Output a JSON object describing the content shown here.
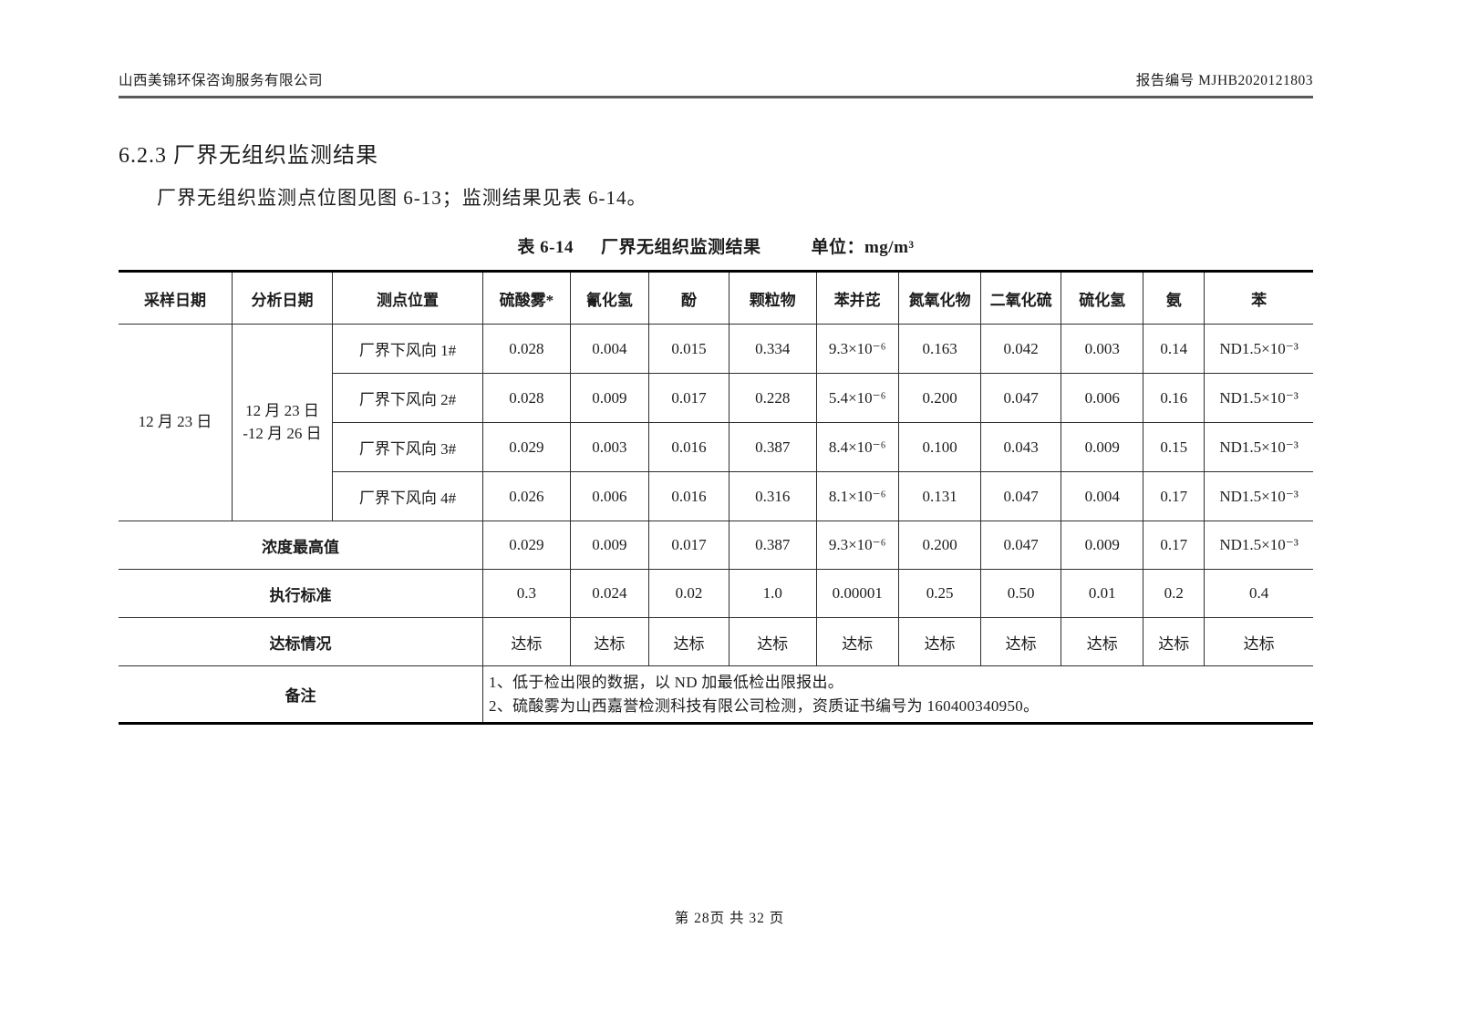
{
  "page_header": {
    "company": "山西美锦环保咨询服务有限公司",
    "report_no": "报告编号 MJHB2020121803"
  },
  "section": {
    "title": "6.2.3 厂界无组织监测结果",
    "paragraph": "厂界无组织监测点位图见图 6-13；监测结果见表 6-14。"
  },
  "caption": {
    "label": "表 6-14",
    "title": "厂界无组织监测结果",
    "unit_label": "单位：",
    "unit_value": "mg/m³"
  },
  "table": {
    "headers": [
      "采样日期",
      "分析日期",
      "测点位置",
      "硫酸雾*",
      "氰化氢",
      "酚",
      "颗粒物",
      "苯并芘",
      "氮氧化物",
      "二氧化硫",
      "硫化氢",
      "氨",
      "苯"
    ],
    "sampling_date": "12 月 23 日",
    "analysis_date": {
      "lines": [
        "12 月 23 日",
        "-12 月 26 日"
      ]
    },
    "rows": [
      {
        "location": "厂界下风向 1#",
        "values": [
          "0.028",
          "0.004",
          "0.015",
          "0.334",
          "9.3×10⁻⁶",
          "0.163",
          "0.042",
          "0.003",
          "0.14",
          "ND1.5×10⁻³"
        ]
      },
      {
        "location": "厂界下风向 2#",
        "values": [
          "0.028",
          "0.009",
          "0.017",
          "0.228",
          "5.4×10⁻⁶",
          "0.200",
          "0.047",
          "0.006",
          "0.16",
          "ND1.5×10⁻³"
        ]
      },
      {
        "location": "厂界下风向 3#",
        "values": [
          "0.029",
          "0.003",
          "0.016",
          "0.387",
          "8.4×10⁻⁶",
          "0.100",
          "0.043",
          "0.009",
          "0.15",
          "ND1.5×10⁻³"
        ]
      },
      {
        "location": "厂界下风向 4#",
        "values": [
          "0.026",
          "0.006",
          "0.016",
          "0.316",
          "8.1×10⁻⁶",
          "0.131",
          "0.047",
          "0.004",
          "0.17",
          "ND1.5×10⁻³"
        ]
      }
    ],
    "summary_rows": [
      {
        "label": "浓度最高值",
        "values": [
          "0.029",
          "0.009",
          "0.017",
          "0.387",
          "9.3×10⁻⁶",
          "0.200",
          "0.047",
          "0.009",
          "0.17",
          "ND1.5×10⁻³"
        ]
      },
      {
        "label": "执行标准",
        "values": [
          "0.3",
          "0.024",
          "0.02",
          "1.0",
          "0.00001",
          "0.25",
          "0.50",
          "0.01",
          "0.2",
          "0.4"
        ]
      },
      {
        "label": "达标情况",
        "values": [
          "达标",
          "达标",
          "达标",
          "达标",
          "达标",
          "达标",
          "达标",
          "达标",
          "达标",
          "达标"
        ]
      }
    ],
    "remark": {
      "label": "备注",
      "lines": [
        "1、低于检出限的数据，以 ND 加最低检出限报出。",
        "2、硫酸雾为山西嘉誉检测科技有限公司检测，资质证书编号为 160400340950。"
      ]
    }
  },
  "footer": {
    "page_info": "第 28页 共 32 页"
  }
}
